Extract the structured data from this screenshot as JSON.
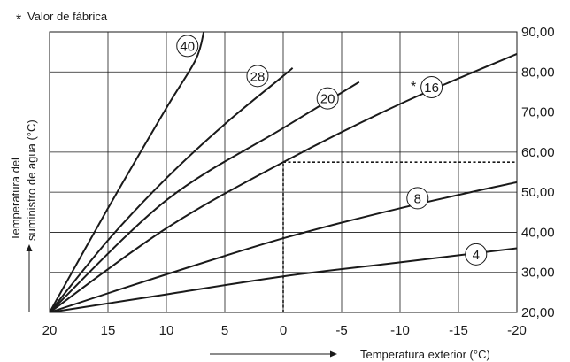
{
  "chart_data": {
    "type": "line",
    "title": "",
    "footnote": "Valor de fábrica",
    "footnote_marker": "*",
    "xlabel": "Temperatura exterior (°C)",
    "ylabel": [
      "Temperatura del",
      "suministro de agua (°C)"
    ],
    "xlim": [
      20,
      -20
    ],
    "ylim": [
      20,
      90
    ],
    "x_ticks": [
      20,
      15,
      10,
      5,
      0,
      -5,
      -10,
      -15,
      -20
    ],
    "x_tick_labels": [
      "20",
      "15",
      "10",
      "5",
      "0",
      "-5",
      "-10",
      "-15",
      "-20"
    ],
    "y_ticks": [
      20,
      30,
      40,
      50,
      60,
      70,
      80,
      90
    ],
    "y_tick_labels": [
      "20,00",
      "30,00",
      "40,00",
      "50,00",
      "60,00",
      "70,00",
      "80,00",
      "90,00"
    ],
    "grid": true,
    "series": [
      {
        "name": "4",
        "x": [
          20,
          10,
          0,
          -10,
          -20
        ],
        "y": [
          20,
          24.5,
          29,
          32.5,
          36
        ]
      },
      {
        "name": "8",
        "x": [
          20,
          10,
          0,
          -10,
          -20
        ],
        "y": [
          20,
          29.5,
          38.5,
          46,
          52.5
        ]
      },
      {
        "name": "16",
        "x": [
          20,
          10,
          0,
          -10,
          -20
        ],
        "y": [
          20,
          41,
          57.5,
          72,
          84.5
        ]
      },
      {
        "name": "20",
        "x": [
          20,
          10,
          0,
          -6.5
        ],
        "y": [
          20,
          48,
          66,
          77.5
        ]
      },
      {
        "name": "28",
        "x": [
          20,
          15,
          10,
          5,
          0,
          -0.8
        ],
        "y": [
          20,
          38,
          53.5,
          67,
          79,
          81
        ]
      },
      {
        "name": "40",
        "x": [
          20,
          15,
          10,
          7.5,
          6.8
        ],
        "y": [
          20,
          46,
          71,
          83,
          90
        ]
      }
    ],
    "factory_default_series": "16",
    "reference_point": {
      "x": 0,
      "y": 57.5
    }
  }
}
